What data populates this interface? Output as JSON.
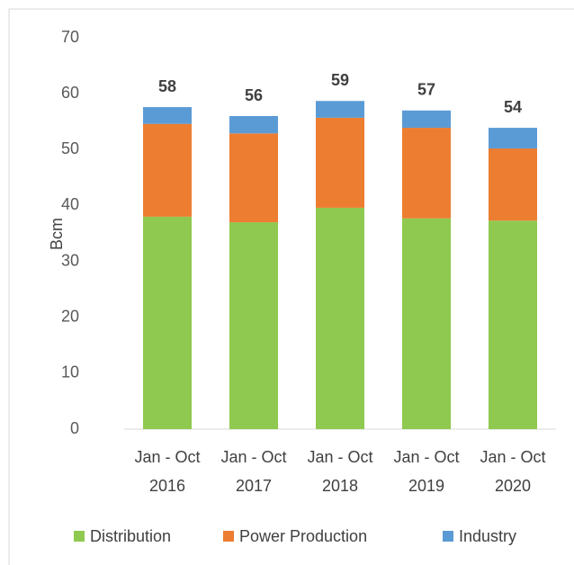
{
  "chart_data": {
    "type": "stacked_bar",
    "categories": [
      "Jan - Oct 2016",
      "Jan - Oct 2017",
      "Jan - Oct 2018",
      "Jan - Oct 2019",
      "Jan - Oct 2020"
    ],
    "series": [
      {
        "name": "Distribution",
        "color": "#8fc94f",
        "values": [
          38.0,
          37.0,
          39.6,
          37.7,
          37.3
        ]
      },
      {
        "name": "Power Production",
        "color": "#ed7d31",
        "values": [
          16.6,
          15.9,
          16.1,
          16.2,
          12.9
        ]
      },
      {
        "name": "Industry",
        "color": "#5b9bd5",
        "values": [
          3.0,
          3.1,
          3.0,
          3.1,
          3.7
        ]
      }
    ],
    "total_labels": [
      58,
      56,
      59,
      57,
      54
    ],
    "y_label": "Bcm",
    "ylim": [
      0,
      70
    ],
    "yticks": [
      0,
      10,
      20,
      30,
      40,
      50,
      60,
      70
    ],
    "legend": "bottom"
  }
}
